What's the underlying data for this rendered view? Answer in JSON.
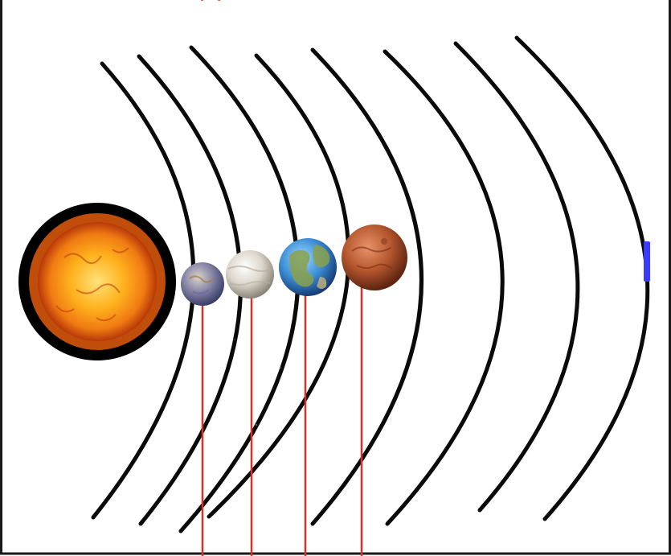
{
  "diagram": {
    "bodies": [
      {
        "id": "sun",
        "icon": "sun-icon"
      },
      {
        "id": "mercury",
        "icon": "mercury-planet-icon"
      },
      {
        "id": "venus",
        "icon": "venus-planet-icon"
      },
      {
        "id": "earth",
        "icon": "earth-planet-icon"
      },
      {
        "id": "mars",
        "icon": "mars-planet-icon"
      }
    ],
    "orbit_count": 8,
    "pointer_line_count": 4,
    "colors": {
      "background": "#ffffff",
      "frame": "#1a1a1a",
      "orbit": "#0a0a0a",
      "pointer_line": "#d9302b",
      "sun_core": "#ffb21e",
      "sun_glow": "#e25a0c",
      "sun_backdrop": "#000000",
      "mercury": "#8a88a8",
      "venus": "#dcd6cc",
      "earth_ocean": "#3d8fd6",
      "earth_land": "#8aa04a",
      "mars": "#b4562e",
      "marker": "#3b3bff"
    }
  }
}
